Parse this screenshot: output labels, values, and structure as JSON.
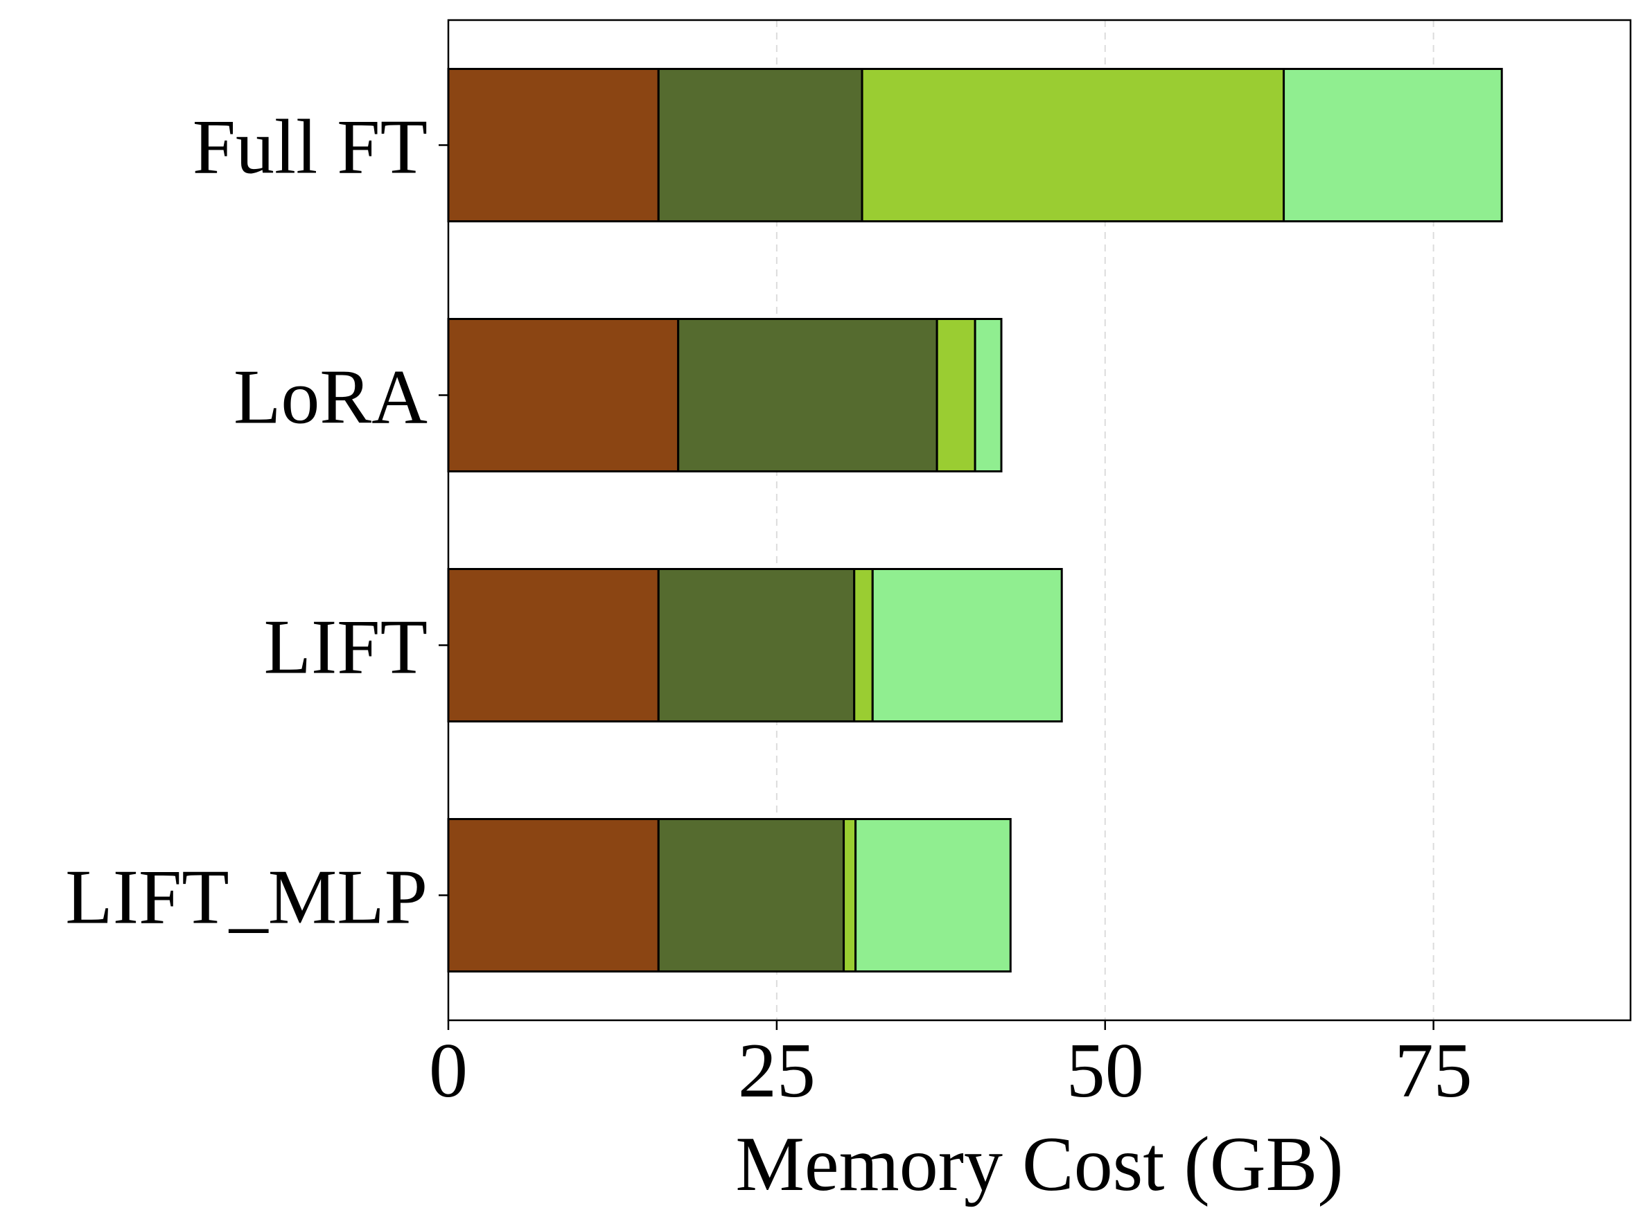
{
  "chart_data": {
    "type": "bar",
    "orientation": "horizontal",
    "stacked": true,
    "categories": [
      "Full FT",
      "LoRA",
      "LIFT",
      "LIFT_MLP"
    ],
    "series": [
      {
        "values": [
          16.0,
          17.5,
          16.0,
          16.0
        ],
        "color": "#8b4513"
      },
      {
        "values": [
          15.5,
          19.7,
          14.9,
          14.1
        ],
        "color": "#556b2f"
      },
      {
        "values": [
          32.1,
          2.9,
          1.4,
          0.9
        ],
        "color": "#9acd32"
      },
      {
        "values": [
          16.6,
          2.0,
          14.4,
          11.8
        ],
        "color": "#90ee90"
      }
    ],
    "xlabel": "Memory Cost (GB)",
    "ylabel": "",
    "xlim": [
      0,
      90
    ],
    "xticks": [
      0,
      25,
      50,
      75
    ],
    "grid": "x-dashed",
    "legend": "none"
  }
}
